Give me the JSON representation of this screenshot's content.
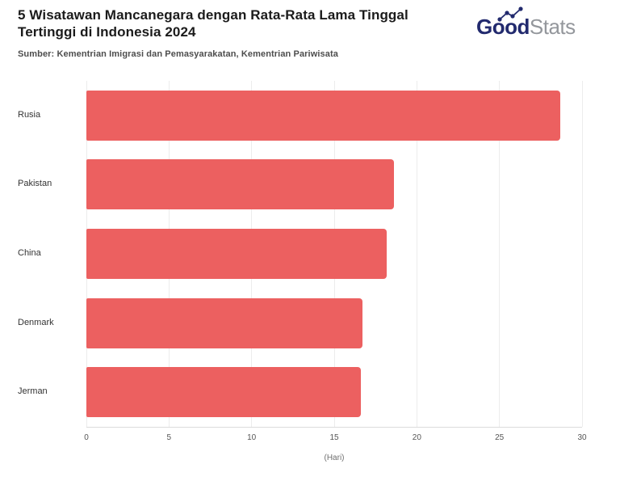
{
  "header": {
    "title_line1": "5 Wisatawan Mancanegara dengan Rata-Rata Lama Tinggal",
    "title_line2": "Tertinggi di Indonesia 2024",
    "source": "Sumber: Kementrian Imigrasi dan Pemasyarakatan, Kementrian Pariwisata"
  },
  "logo": {
    "part_bold": "Good",
    "part_light": "Stats"
  },
  "colors": {
    "bar": "#ec6060",
    "grid": "#ececec",
    "axis_line": "#dcdcdc",
    "logo_navy": "#222a6e",
    "logo_gray": "#94979c"
  },
  "chart_data": {
    "type": "bar",
    "orientation": "horizontal",
    "title": "5 Wisatawan Mancanegara dengan Rata-Rata Lama Tinggal Tertinggi di Indonesia 2024",
    "source": "Sumber: Kementrian Imigrasi dan Pemasyarakatan, Kementrian Pariwisata",
    "categories": [
      "Rusia",
      "Pakistan",
      "China",
      "Denmark",
      "Jerman"
    ],
    "values": [
      28.7,
      18.6,
      18.2,
      16.7,
      16.6
    ],
    "xlabel": "(Hari)",
    "xlim": [
      0,
      30
    ],
    "xticks": [
      0,
      5,
      10,
      15,
      20,
      25,
      30
    ],
    "grid": true,
    "legend": false,
    "bar_color": "#ec6060"
  }
}
